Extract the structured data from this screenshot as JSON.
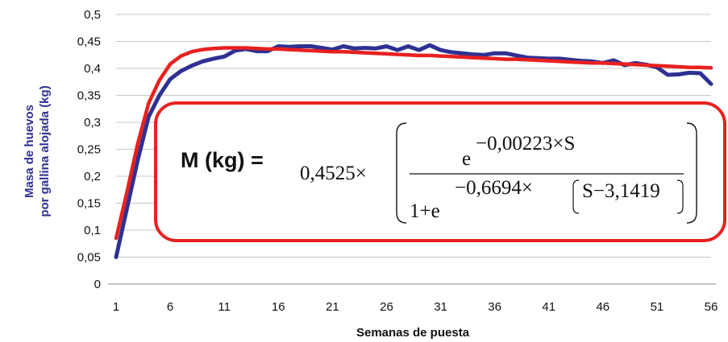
{
  "chart_data": {
    "type": "line",
    "title": "",
    "xlabel": "Semanas de puesta",
    "ylabel_line1": "Masa de huevos",
    "ylabel_line2": "por gallina alojada (kg)",
    "xlim": [
      1,
      56
    ],
    "ylim": [
      0,
      0.5
    ],
    "x_ticks": [
      1,
      6,
      11,
      16,
      21,
      26,
      31,
      36,
      41,
      46,
      51,
      56
    ],
    "y_ticks": [
      0,
      0.05,
      0.1,
      0.15,
      0.2,
      0.25,
      0.3,
      0.35,
      0.4,
      0.45,
      0.5
    ],
    "x_tick_labels": [
      "1",
      "6",
      "11",
      "16",
      "21",
      "26",
      "31",
      "36",
      "41",
      "46",
      "51",
      "56"
    ],
    "y_tick_labels": [
      "0",
      "0,05",
      "0,1",
      "0,15",
      "0,2",
      "0,25",
      "0,3",
      "0,35",
      "0,4",
      "0,45",
      "0,5"
    ],
    "grid": "horizontal",
    "series": [
      {
        "color": "#2e3192",
        "x": [
          1,
          2,
          3,
          4,
          5,
          6,
          7,
          8,
          9,
          10,
          11,
          12,
          13,
          14,
          15,
          16,
          17,
          18,
          19,
          20,
          21,
          22,
          23,
          24,
          25,
          26,
          27,
          28,
          29,
          30,
          31,
          32,
          33,
          34,
          35,
          36,
          37,
          38,
          39,
          40,
          41,
          42,
          43,
          44,
          45,
          46,
          47,
          48,
          49,
          50,
          51,
          52,
          53,
          54,
          55,
          56
        ],
        "values": [
          0.05,
          0.14,
          0.23,
          0.31,
          0.35,
          0.38,
          0.395,
          0.405,
          0.413,
          0.418,
          0.422,
          0.433,
          0.436,
          0.432,
          0.432,
          0.441,
          0.44,
          0.441,
          0.441,
          0.438,
          0.435,
          0.441,
          0.437,
          0.438,
          0.437,
          0.441,
          0.434,
          0.441,
          0.434,
          0.443,
          0.434,
          0.43,
          0.428,
          0.426,
          0.425,
          0.428,
          0.428,
          0.424,
          0.42,
          0.419,
          0.418,
          0.418,
          0.416,
          0.414,
          0.413,
          0.41,
          0.415,
          0.406,
          0.41,
          0.407,
          0.402,
          0.388,
          0.389,
          0.392,
          0.391,
          0.371
        ]
      },
      {
        "color": "#e8211f",
        "x": [
          1,
          2,
          3,
          4,
          5,
          6,
          7,
          8,
          9,
          10,
          11,
          12,
          13,
          14,
          15,
          16,
          17,
          18,
          19,
          20,
          21,
          22,
          23,
          24,
          25,
          26,
          27,
          28,
          29,
          30,
          31,
          32,
          33,
          34,
          35,
          36,
          37,
          38,
          39,
          40,
          41,
          42,
          43,
          44,
          45,
          46,
          47,
          48,
          49,
          50,
          51,
          52,
          53,
          54,
          55,
          56
        ],
        "values": [
          0.085,
          0.17,
          0.26,
          0.335,
          0.378,
          0.408,
          0.423,
          0.431,
          0.435,
          0.437,
          0.438,
          0.438,
          0.438,
          0.437,
          0.436,
          0.436,
          0.435,
          0.434,
          0.433,
          0.432,
          0.431,
          0.431,
          0.43,
          0.429,
          0.428,
          0.427,
          0.426,
          0.425,
          0.424,
          0.424,
          0.423,
          0.422,
          0.421,
          0.42,
          0.419,
          0.418,
          0.417,
          0.417,
          0.416,
          0.415,
          0.414,
          0.413,
          0.412,
          0.411,
          0.41,
          0.41,
          0.409,
          0.408,
          0.407,
          0.406,
          0.405,
          0.404,
          0.403,
          0.402,
          0.402,
          0.401
        ]
      }
    ]
  },
  "formula": {
    "label": "M (kg) =",
    "coef": "0,4525×",
    "num_base": "e",
    "num_exp": "−0,00223×S",
    "den_base": "1+e",
    "den_exp_pre": "−0,6694×",
    "den_exp_inner": "S−3,1419",
    "box_color": "#e8211f"
  },
  "colors": {
    "axis_title": "#2e3192",
    "grid": "#c8c8c8"
  }
}
